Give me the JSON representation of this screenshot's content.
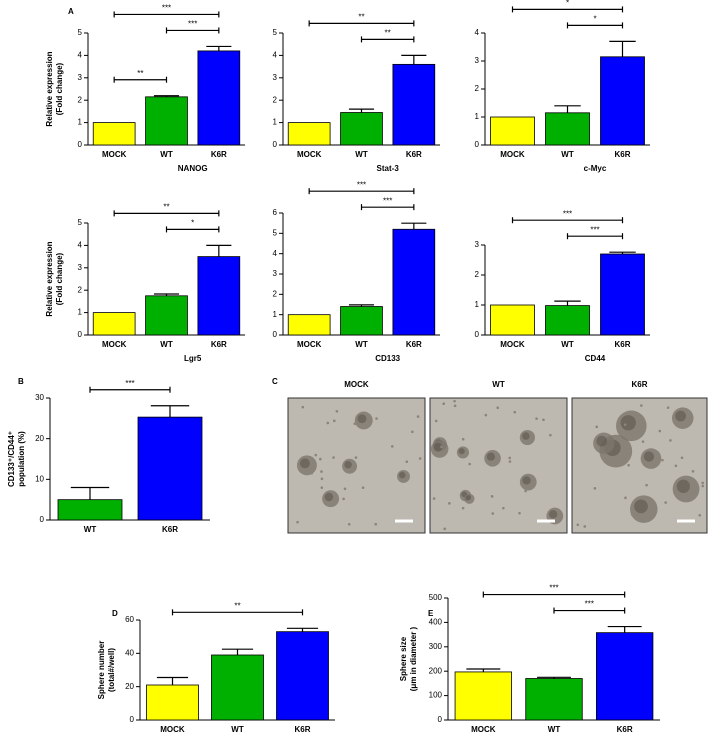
{
  "panel_labels": [
    "A",
    "B",
    "C",
    "D",
    "E"
  ],
  "images": {
    "labels": [
      "MOCK",
      "WT",
      "K6R"
    ]
  },
  "chart_data": [
    {
      "type": "bar",
      "xlabel": "NANOG",
      "ylabel": [
        "Relative expression",
        "(Fold change)"
      ],
      "categories": [
        "MOCK",
        "WT",
        "K6R"
      ],
      "values": [
        1,
        2.15,
        4.2
      ],
      "errors": [
        null,
        0.05,
        0.2
      ],
      "colors": [
        "#ffff00",
        "#00b000",
        "#0000ff"
      ],
      "ylim": [
        0,
        5
      ],
      "yticks": [
        0,
        1,
        2,
        3,
        4,
        5
      ],
      "significance": [
        {
          "pair": [
            "MOCK",
            "WT"
          ],
          "label": "**"
        },
        {
          "pair": [
            "WT",
            "K6R"
          ],
          "label": "***"
        },
        {
          "pair": [
            "MOCK",
            "K6R"
          ],
          "label": "***"
        }
      ]
    },
    {
      "type": "bar",
      "xlabel": "Stat-3",
      "categories": [
        "MOCK",
        "WT",
        "K6R"
      ],
      "values": [
        1,
        1.45,
        3.6
      ],
      "errors": [
        null,
        0.15,
        0.4
      ],
      "colors": [
        "#ffff00",
        "#00b000",
        "#0000ff"
      ],
      "ylim": [
        0,
        5
      ],
      "yticks": [
        0,
        1,
        2,
        3,
        4,
        5
      ],
      "significance": [
        {
          "pair": [
            "WT",
            "K6R"
          ],
          "label": "**"
        },
        {
          "pair": [
            "MOCK",
            "K6R"
          ],
          "label": "**"
        }
      ]
    },
    {
      "type": "bar",
      "xlabel": "c-Myc",
      "categories": [
        "MOCK",
        "WT",
        "K6R"
      ],
      "values": [
        1,
        1.15,
        3.15
      ],
      "errors": [
        null,
        0.25,
        0.55
      ],
      "colors": [
        "#ffff00",
        "#00b000",
        "#0000ff"
      ],
      "ylim": [
        0,
        4
      ],
      "yticks": [
        0,
        1,
        2,
        3,
        4
      ],
      "significance": [
        {
          "pair": [
            "WT",
            "K6R"
          ],
          "label": "*"
        },
        {
          "pair": [
            "MOCK",
            "K6R"
          ],
          "label": "*"
        }
      ]
    },
    {
      "type": "bar",
      "xlabel": "Lgr5",
      "ylabel": [
        "Relative expression",
        "(Fold change)"
      ],
      "categories": [
        "MOCK",
        "WT",
        "K6R"
      ],
      "values": [
        1,
        1.75,
        3.5
      ],
      "errors": [
        null,
        0.08,
        0.5
      ],
      "colors": [
        "#ffff00",
        "#00b000",
        "#0000ff"
      ],
      "ylim": [
        0,
        5
      ],
      "yticks": [
        0,
        1,
        2,
        3,
        4,
        5
      ],
      "significance": [
        {
          "pair": [
            "WT",
            "K6R"
          ],
          "label": "*"
        },
        {
          "pair": [
            "MOCK",
            "K6R"
          ],
          "label": "**"
        }
      ]
    },
    {
      "type": "bar",
      "xlabel": "CD133",
      "categories": [
        "MOCK",
        "WT",
        "K6R"
      ],
      "values": [
        1,
        1.4,
        5.2
      ],
      "errors": [
        null,
        0.08,
        0.3
      ],
      "colors": [
        "#ffff00",
        "#00b000",
        "#0000ff"
      ],
      "ylim": [
        0,
        6
      ],
      "yticks": [
        0,
        1,
        2,
        3,
        4,
        5,
        6
      ],
      "significance": [
        {
          "pair": [
            "WT",
            "K6R"
          ],
          "label": "***"
        },
        {
          "pair": [
            "MOCK",
            "K6R"
          ],
          "label": "***"
        }
      ]
    },
    {
      "type": "bar",
      "xlabel": "CD44",
      "categories": [
        "MOCK",
        "WT",
        "K6R"
      ],
      "values": [
        1,
        0.98,
        2.7
      ],
      "errors": [
        null,
        0.15,
        0.06
      ],
      "colors": [
        "#ffff00",
        "#00b000",
        "#0000ff"
      ],
      "ylim": [
        0,
        3
      ],
      "yticks": [
        0,
        1,
        2,
        3
      ],
      "significance": [
        {
          "pair": [
            "WT",
            "K6R"
          ],
          "label": "***"
        },
        {
          "pair": [
            "MOCK",
            "K6R"
          ],
          "label": "***"
        }
      ]
    },
    {
      "type": "bar",
      "ylabel": [
        "CD133⁺/CD44⁺",
        "population (%)"
      ],
      "categories": [
        "WT",
        "K6R"
      ],
      "values": [
        5,
        25.3
      ],
      "errors": [
        3,
        2.8
      ],
      "colors": [
        "#00b000",
        "#0000ff"
      ],
      "ylim": [
        0,
        30
      ],
      "yticks": [
        0,
        10,
        20,
        30
      ],
      "significance": [
        {
          "pair": [
            "WT",
            "K6R"
          ],
          "label": "***"
        }
      ]
    },
    {
      "type": "bar",
      "ylabel": [
        "Sphere number",
        "(total#/well)"
      ],
      "categories": [
        "MOCK",
        "WT",
        "K6R"
      ],
      "values": [
        21,
        39,
        53
      ],
      "errors": [
        4.5,
        3.5,
        2
      ],
      "colors": [
        "#ffff00",
        "#00b000",
        "#0000ff"
      ],
      "ylim": [
        0,
        60
      ],
      "yticks": [
        0,
        20,
        40,
        60
      ],
      "significance": [
        {
          "pair": [
            "MOCK",
            "K6R"
          ],
          "label": "**"
        }
      ]
    },
    {
      "type": "bar",
      "ylabel": [
        "Sphere size",
        "(μm in diameter )"
      ],
      "categories": [
        "MOCK",
        "WT",
        "K6R"
      ],
      "values": [
        197,
        170,
        358
      ],
      "errors": [
        12,
        5,
        25
      ],
      "colors": [
        "#ffff00",
        "#00b000",
        "#0000ff"
      ],
      "ylim": [
        0,
        500
      ],
      "yticks": [
        0,
        100,
        200,
        300,
        400,
        500
      ],
      "significance": [
        {
          "pair": [
            "WT",
            "K6R"
          ],
          "label": "***"
        },
        {
          "pair": [
            "MOCK",
            "K6R"
          ],
          "label": "***"
        }
      ]
    }
  ]
}
